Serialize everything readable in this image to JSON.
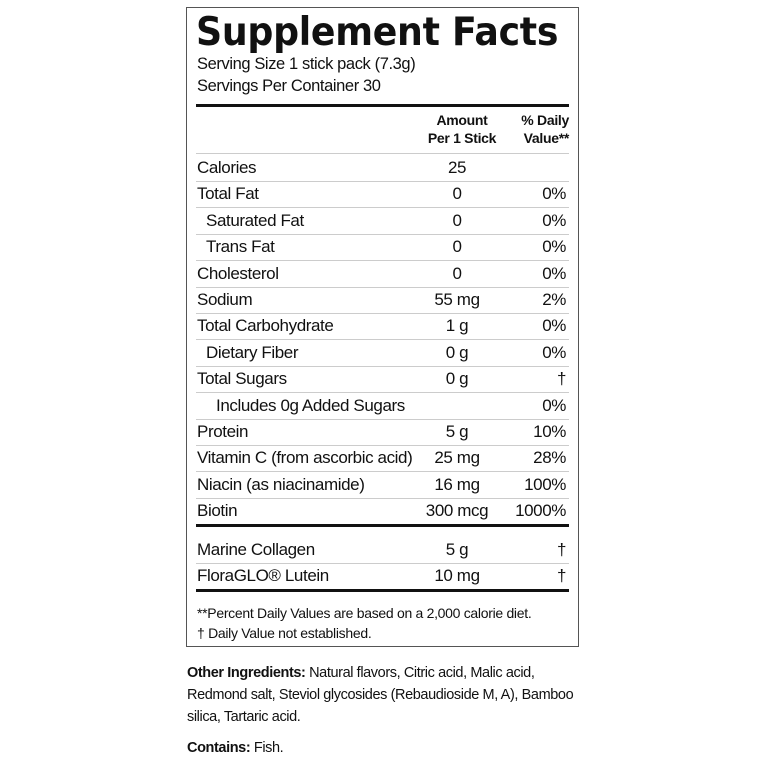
{
  "title": "Supplement Facts",
  "serving_size": "Serving Size 1 stick pack (7.3g)",
  "servings_per_container": "Servings Per Container 30",
  "header": {
    "amount_line1": "Amount",
    "amount_line2": "Per 1 Stick",
    "dv_line1": "% Daily",
    "dv_line2": "Value**"
  },
  "rows": [
    {
      "name": "Calories",
      "amount": "25",
      "dv": "",
      "indent": 0
    },
    {
      "name": "Total Fat",
      "amount": "0",
      "dv": "0%",
      "indent": 0
    },
    {
      "name": "Saturated Fat",
      "amount": "0",
      "dv": "0%",
      "indent": 1
    },
    {
      "name": "Trans Fat",
      "amount": "0",
      "dv": "0%",
      "indent": 1
    },
    {
      "name": "Cholesterol",
      "amount": "0",
      "dv": "0%",
      "indent": 0
    },
    {
      "name": "Sodium",
      "amount": "55 mg",
      "dv": "2%",
      "indent": 0
    },
    {
      "name": "Total Carbohydrate",
      "amount": "1 g",
      "dv": "0%",
      "indent": 0
    },
    {
      "name": "Dietary Fiber",
      "amount": "0 g",
      "dv": "0%",
      "indent": 1
    },
    {
      "name": "Total Sugars",
      "amount": "0 g",
      "dv": "†",
      "indent": 0
    },
    {
      "name": "Includes 0g Added Sugars",
      "amount": "",
      "dv": "0%",
      "indent": 2
    },
    {
      "name": "Protein",
      "amount": "5 g",
      "dv": "10%",
      "indent": 0
    },
    {
      "name": "Vitamin C (from ascorbic acid)",
      "amount": "25 mg",
      "dv": "28%",
      "indent": 0
    },
    {
      "name": "Niacin (as niacinamide)",
      "amount": "16 mg",
      "dv": "100%",
      "indent": 0
    },
    {
      "name": "Biotin",
      "amount": "300 mcg",
      "dv": "1000%",
      "indent": 0
    }
  ],
  "other_rows": [
    {
      "name": "Marine Collagen",
      "amount": "5 g",
      "dv": "†"
    },
    {
      "name": "FloraGLO® Lutein",
      "amount": "10 mg",
      "dv": "†"
    }
  ],
  "footnotes": [
    "**Percent Daily Values are based on a 2,000 calorie diet.",
    "† Daily Value not established."
  ],
  "other_ingredients": {
    "label": "Other Ingredients:",
    "text": " Natural flavors, Citric acid, Malic acid, Redmond salt, Steviol glycosides (Rebaudioside M, A), Bamboo silica, Tartaric acid."
  },
  "contains": {
    "label": "Contains:",
    "text": " Fish."
  }
}
